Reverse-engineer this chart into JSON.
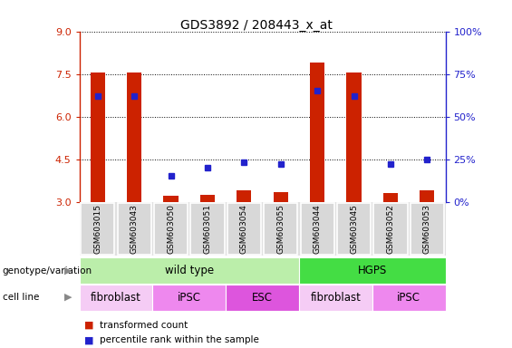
{
  "title": "GDS3892 / 208443_x_at",
  "samples": [
    "GSM603015",
    "GSM603043",
    "GSM603050",
    "GSM603051",
    "GSM603054",
    "GSM603055",
    "GSM603044",
    "GSM603045",
    "GSM603052",
    "GSM603053"
  ],
  "transformed_count": [
    7.55,
    7.55,
    3.2,
    3.25,
    3.4,
    3.35,
    7.9,
    7.55,
    3.3,
    3.4
  ],
  "percentile_rank_pct": [
    62,
    62,
    15,
    20,
    23,
    22,
    65,
    62,
    22,
    25
  ],
  "ylim_left": [
    3,
    9
  ],
  "ylim_right": [
    0,
    100
  ],
  "yticks_left": [
    3,
    4.5,
    6,
    7.5,
    9
  ],
  "yticks_right": [
    0,
    25,
    50,
    75,
    100
  ],
  "bar_color": "#cc2200",
  "dot_color": "#2222cc",
  "bar_width": 0.4,
  "genotype_groups": [
    {
      "label": "wild type",
      "span": [
        0,
        6
      ],
      "color": "#bbeeaa"
    },
    {
      "label": "HGPS",
      "span": [
        6,
        10
      ],
      "color": "#44dd44"
    }
  ],
  "cell_line_groups": [
    {
      "label": "fibroblast",
      "span": [
        0,
        2
      ],
      "color": "#f5ccf5"
    },
    {
      "label": "iPSC",
      "span": [
        2,
        4
      ],
      "color": "#ee88ee"
    },
    {
      "label": "ESC",
      "span": [
        4,
        6
      ],
      "color": "#dd55dd"
    },
    {
      "label": "fibroblast",
      "span": [
        6,
        8
      ],
      "color": "#f5ccf5"
    },
    {
      "label": "iPSC",
      "span": [
        8,
        10
      ],
      "color": "#ee88ee"
    }
  ],
  "left_axis_color": "#cc2200",
  "right_axis_color": "#2222cc",
  "sample_bg_color": "#cccccc",
  "legend": [
    {
      "label": "transformed count",
      "color": "#cc2200"
    },
    {
      "label": "percentile rank within the sample",
      "color": "#2222cc"
    }
  ]
}
